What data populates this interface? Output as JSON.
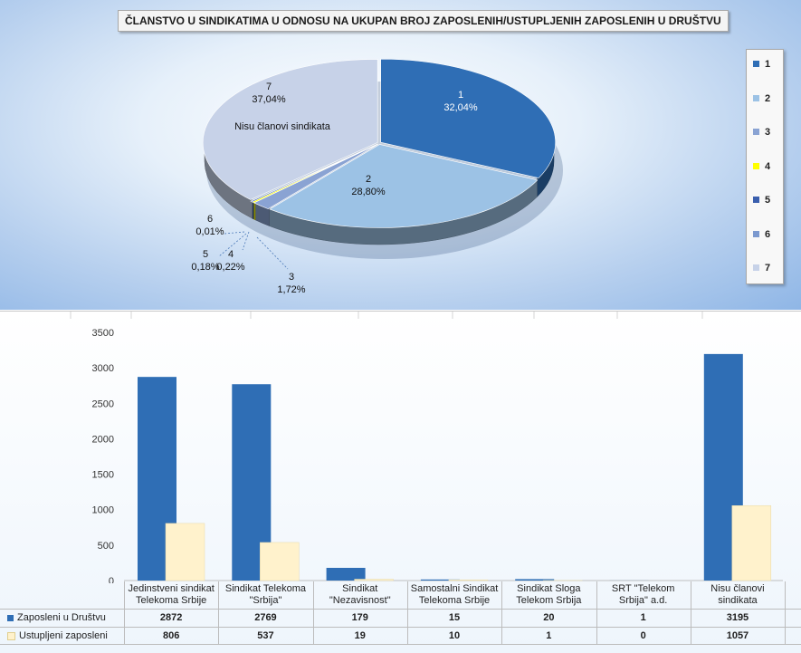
{
  "pie_title": "ČLANSTVO U SINDIKATIMA U ODNOSU NA UKUPAN BROJ ZAPOSLENIH/USTUPLJENIH ZAPOSLENIH U DRUŠTVU",
  "pie_legend": [
    {
      "label": "1",
      "color": "#2f6eb5"
    },
    {
      "label": "2",
      "color": "#9cc2e5"
    },
    {
      "label": "3",
      "color": "#8aa3d3"
    },
    {
      "label": "4",
      "color": "#ffff00"
    },
    {
      "label": "5",
      "color": "#3a5fae"
    },
    {
      "label": "6",
      "color": "#7c99cf"
    },
    {
      "label": "7",
      "color": "#c7d2e8"
    }
  ],
  "pie_labels": [
    {
      "name": "1",
      "pct": "32,04%"
    },
    {
      "name": "2",
      "pct": "28,80%"
    },
    {
      "name": "3",
      "pct": "1,72%"
    },
    {
      "name": "4",
      "pct": "0,22%"
    },
    {
      "name": "5",
      "pct": "0,18%"
    },
    {
      "name": "6",
      "pct": "0,01%"
    },
    {
      "name": "7",
      "pct": "37,04%",
      "note": "Nisu članovi sindikata"
    }
  ],
  "chart_data": [
    {
      "type": "pie",
      "title": "ČLANSTVO U SINDIKATIMA U ODNOSU NA UKUPAN BROJ ZAPOSLENIH/USTUPLJENIH ZAPOSLENIH U DRUŠTVU",
      "categories": [
        "1",
        "2",
        "3",
        "4",
        "5",
        "6",
        "7"
      ],
      "values": [
        32.04,
        28.8,
        1.72,
        0.22,
        0.18,
        0.01,
        37.04
      ],
      "legend": "right",
      "colors": [
        "#2f6eb5",
        "#9cc2e5",
        "#8aa3d3",
        "#ffff00",
        "#3a5fae",
        "#7c99cf",
        "#c7d2e8"
      ]
    },
    {
      "type": "bar",
      "categories": [
        "Jedinstveni sindikat Telekoma Srbije",
        "Sindikat Telekoma \"Srbija\"",
        "Sindikat \"Nezavisnost\"",
        "Samostalni Sindikat Telekoma Srbije",
        "Sindikat Sloga Telekom Srbija",
        "SRT \"Telekom Srbija\" a.d.",
        "Nisu članovi sindikata"
      ],
      "category_lines": [
        [
          "Jedinstveni sindikat",
          "Telekoma Srbije"
        ],
        [
          "Sindikat Telekoma",
          "\"Srbija\""
        ],
        [
          "Sindikat",
          "\"Nezavisnost\""
        ],
        [
          "Samostalni Sindikat",
          "Telekoma Srbije"
        ],
        [
          "Sindikat Sloga",
          "Telekom Srbija"
        ],
        [
          "SRT \"Telekom",
          "Srbija\" a.d."
        ],
        [
          "Nisu članovi",
          "sindikata"
        ]
      ],
      "series": [
        {
          "name": "Zaposleni u Društvu",
          "values": [
            2872,
            2769,
            179,
            15,
            20,
            1,
            3195
          ],
          "color": "#2f6eb5"
        },
        {
          "name": "Ustupljeni zaposleni",
          "values": [
            806,
            537,
            19,
            10,
            1,
            0,
            1057
          ],
          "color": "#fff2cc"
        }
      ],
      "ylim": [
        0,
        3500
      ],
      "yticks": [
        "0",
        "500",
        "1000",
        "1500",
        "2000",
        "2500",
        "3000",
        "3500"
      ],
      "legend": "data table",
      "grid": false
    }
  ]
}
